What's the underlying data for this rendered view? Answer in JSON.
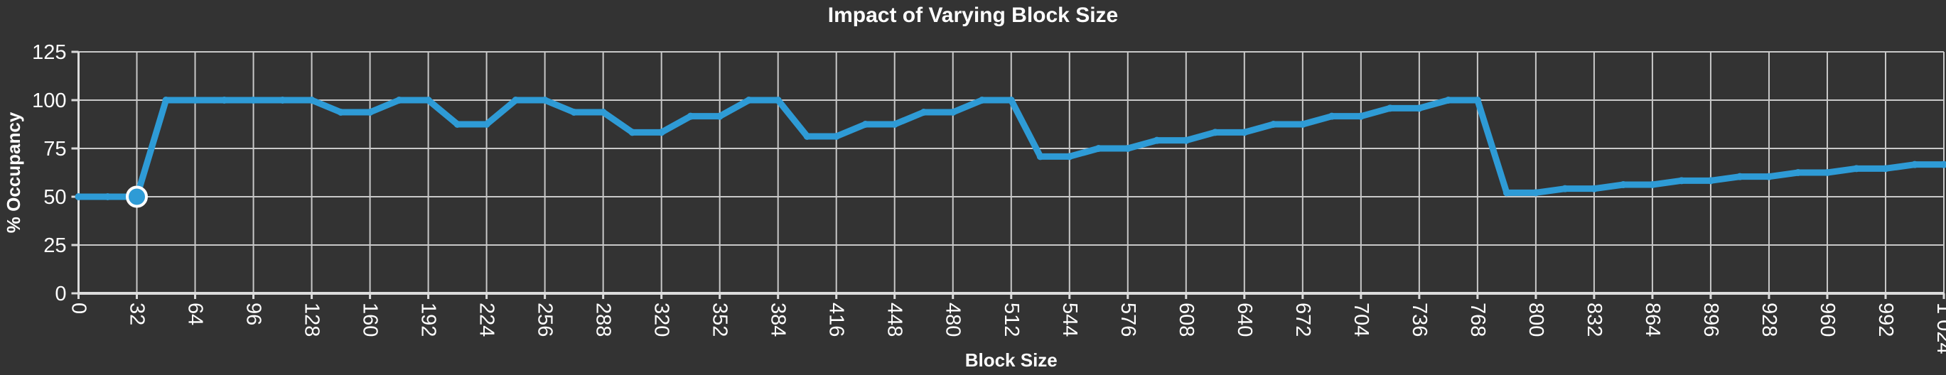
{
  "chart": {
    "background_color": "#333333",
    "grid_color": "#c9c9c9",
    "axis_color": "#dcdcdc",
    "text_color": "#ffffff",
    "line_color": "#2e9bd6",
    "marker_fill_color": "#2e9bd6",
    "marker_ring_color": "#ffffff"
  },
  "chart_data": {
    "type": "line",
    "title": "Impact of Varying Block Size",
    "xlabel": "Block Size",
    "ylabel": "% Occupancy",
    "xlim": [
      0,
      1024
    ],
    "ylim": [
      0,
      125
    ],
    "grid": true,
    "legend_position": "none",
    "y_ticks": [
      0,
      25,
      50,
      75,
      100,
      125
    ],
    "y_tick_labels": [
      "0",
      "25",
      "50",
      "75",
      "100",
      "125"
    ],
    "x_ticks": [
      0,
      32,
      64,
      96,
      128,
      160,
      192,
      224,
      256,
      288,
      320,
      352,
      384,
      416,
      448,
      480,
      512,
      544,
      576,
      608,
      640,
      672,
      704,
      736,
      768,
      800,
      832,
      864,
      896,
      928,
      960,
      992,
      1024
    ],
    "x_tick_labels": [
      "0",
      "32",
      "64",
      "96",
      "128",
      "160",
      "192",
      "224",
      "256",
      "288",
      "320",
      "352",
      "384",
      "416",
      "448",
      "480",
      "512",
      "544",
      "576",
      "608",
      "640",
      "672",
      "704",
      "736",
      "768",
      "800",
      "832",
      "864",
      "896",
      "928",
      "960",
      "992",
      "1 024"
    ],
    "series": [
      {
        "name": "% Occupancy",
        "x": [
          0,
          16,
          32,
          48,
          64,
          80,
          96,
          112,
          128,
          144,
          160,
          176,
          192,
          208,
          224,
          240,
          256,
          272,
          288,
          304,
          320,
          336,
          352,
          368,
          384,
          400,
          416,
          432,
          448,
          464,
          480,
          496,
          512,
          528,
          544,
          560,
          576,
          592,
          608,
          624,
          640,
          656,
          672,
          688,
          704,
          720,
          736,
          752,
          768,
          784,
          800,
          816,
          832,
          848,
          864,
          880,
          896,
          912,
          928,
          944,
          960,
          976,
          992,
          1008,
          1024
        ],
        "values": [
          50,
          50,
          50,
          100,
          100,
          100,
          100,
          100,
          100,
          93.75,
          93.75,
          100,
          100,
          87.5,
          87.5,
          100,
          100,
          93.75,
          93.75,
          83.33,
          83.33,
          91.67,
          91.67,
          100,
          100,
          81.25,
          81.25,
          87.5,
          87.5,
          93.75,
          93.75,
          100,
          100,
          70.83,
          70.83,
          75,
          75,
          79.17,
          79.17,
          83.33,
          83.33,
          87.5,
          87.5,
          91.67,
          91.67,
          95.83,
          95.83,
          100,
          100,
          52.08,
          52.08,
          54.17,
          54.17,
          56.25,
          56.25,
          58.33,
          58.33,
          60.42,
          60.42,
          62.5,
          62.5,
          64.58,
          64.58,
          66.67,
          66.67
        ]
      }
    ],
    "highlight_point": {
      "x": 32,
      "y": 50
    }
  }
}
